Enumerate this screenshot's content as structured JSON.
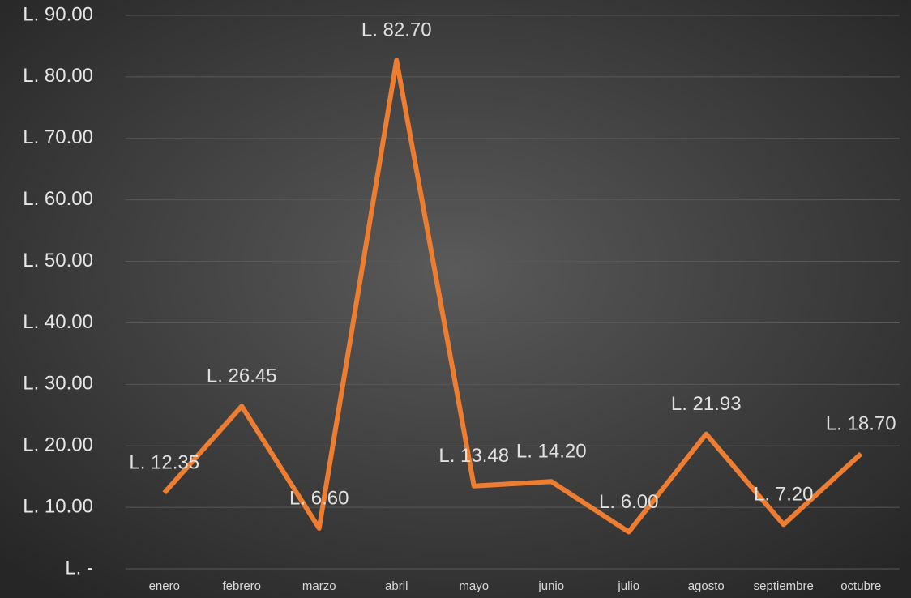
{
  "chart_data": {
    "type": "line",
    "categories": [
      "enero",
      "febrero",
      "marzo",
      "abril",
      "mayo",
      "junio",
      "julio",
      "agosto",
      "septiembre",
      "octubre"
    ],
    "series": [
      {
        "color": "#ed7d31",
        "values": [
          12.35,
          26.45,
          6.6,
          82.7,
          13.48,
          14.2,
          6.0,
          21.93,
          7.2,
          18.7
        ],
        "value_labels": [
          "L. 12.35",
          "L. 26.45",
          "L. 6.60",
          "L. 82.70",
          "L. 13.48",
          "L. 14.20",
          "L. 6.00",
          "L. 21.93",
          "L. 7.20",
          "L. 18.70"
        ]
      }
    ],
    "ylim": [
      0,
      90
    ],
    "yticks": [
      {
        "value": 0,
        "label": "L. -"
      },
      {
        "value": 10,
        "label": "L. 10.00"
      },
      {
        "value": 20,
        "label": "L. 20.00"
      },
      {
        "value": 30,
        "label": "L. 30.00"
      },
      {
        "value": 40,
        "label": "L. 40.00"
      },
      {
        "value": 50,
        "label": "L. 50.00"
      },
      {
        "value": 60,
        "label": "L. 60.00"
      },
      {
        "value": 70,
        "label": "L. 70.00"
      },
      {
        "value": 80,
        "label": "L. 80.00"
      },
      {
        "value": 90,
        "label": "L. 90.00"
      }
    ],
    "grid": true
  }
}
